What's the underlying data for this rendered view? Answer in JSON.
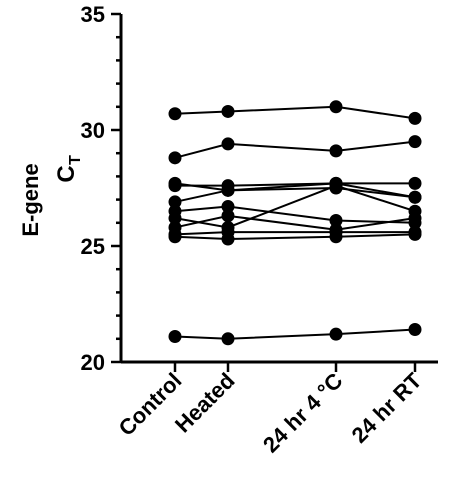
{
  "chart_data": {
    "type": "line",
    "categories": [
      "Control",
      "Heated",
      "24 hr 4 °C",
      "24 hr RT"
    ],
    "ylim": [
      20,
      35
    ],
    "yticks": [
      20,
      25,
      30,
      35
    ],
    "ytick_labels": [
      "20",
      "25",
      "30",
      "35"
    ],
    "ylabel_line1": "E-gene",
    "ylabel_main": "C",
    "ylabel_sub": "T",
    "grid": false,
    "series": [
      {
        "values": [
          30.7,
          30.8,
          31.0,
          30.5
        ]
      },
      {
        "values": [
          28.8,
          29.4,
          29.1,
          29.5
        ]
      },
      {
        "values": [
          27.7,
          27.4,
          27.7,
          27.7
        ]
      },
      {
        "values": [
          27.6,
          27.6,
          27.7,
          27.1
        ]
      },
      {
        "values": [
          26.9,
          27.4,
          27.5,
          27.1
        ]
      },
      {
        "values": [
          26.5,
          26.7,
          26.1,
          26.0
        ]
      },
      {
        "values": [
          26.2,
          25.8,
          27.6,
          26.5
        ]
      },
      {
        "values": [
          25.8,
          26.3,
          25.7,
          26.2
        ]
      },
      {
        "values": [
          25.5,
          25.6,
          25.6,
          25.6
        ]
      },
      {
        "values": [
          25.4,
          25.3,
          25.4,
          25.5
        ]
      },
      {
        "values": [
          21.1,
          21.0,
          21.2,
          21.4
        ]
      }
    ],
    "colors": {
      "line": "#000000",
      "marker": "#000000",
      "axis": "#000000"
    }
  }
}
